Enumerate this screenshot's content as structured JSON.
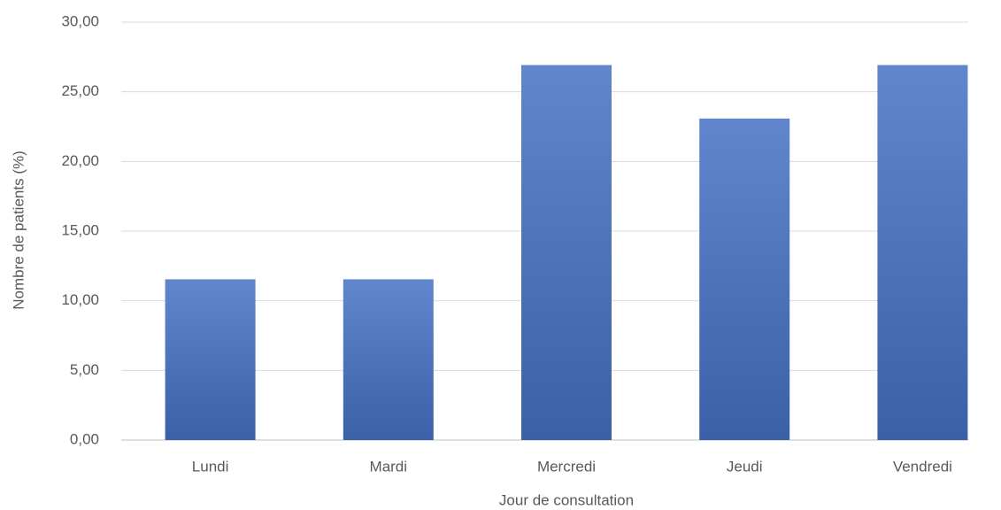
{
  "chart_data": {
    "type": "bar",
    "categories": [
      "Lundi",
      "Mardi",
      "Mercredi",
      "Jeudi",
      "Vendredi"
    ],
    "values": [
      11.54,
      11.54,
      26.92,
      23.08,
      26.92
    ],
    "color": "#4472c4",
    "xlabel": "Jour de consultation",
    "ylabel": "Nombre de patients (%)",
    "ylim": [
      0,
      30
    ],
    "yticks": [
      {
        "value": 0,
        "label": "0,00"
      },
      {
        "value": 5,
        "label": "5,00"
      },
      {
        "value": 10,
        "label": "10,00"
      },
      {
        "value": 15,
        "label": "15,00"
      },
      {
        "value": 20,
        "label": "20,00"
      },
      {
        "value": 25,
        "label": "25,00"
      },
      {
        "value": 30,
        "label": "30,00"
      }
    ],
    "grid": true
  }
}
